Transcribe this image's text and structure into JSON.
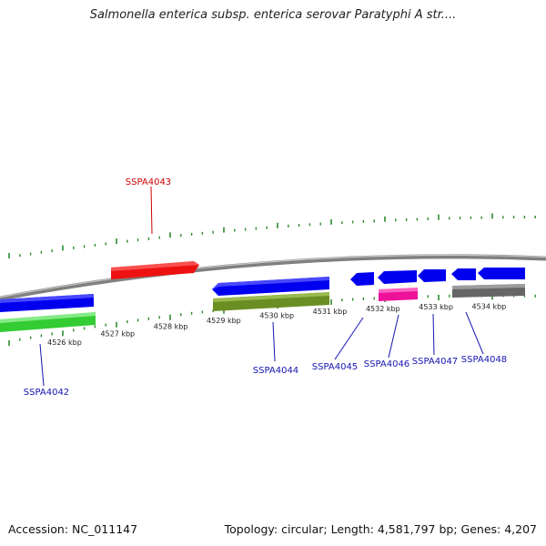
{
  "title": "Salmonella enterica subsp. enterica serovar Paratyphi A str....",
  "footer": {
    "accession": "Accession: NC_011147",
    "summary": "Topology: circular; Length: 4,581,797 bp; Genes: 4,207"
  },
  "colors": {
    "backbone": "#808080",
    "tick": "#2e8b2e",
    "label_blue": "#1515b0",
    "label_red": "#cc0000"
  },
  "position_labels": [
    {
      "text": "4526 kbp",
      "kbp": 4526
    },
    {
      "text": "4527 kbp",
      "kbp": 4527
    },
    {
      "text": "4528 kbp",
      "kbp": 4528
    },
    {
      "text": "4529 kbp",
      "kbp": 4529
    },
    {
      "text": "4530 kbp",
      "kbp": 4530
    },
    {
      "text": "4531 kbp",
      "kbp": 4531
    },
    {
      "text": "4532 kbp",
      "kbp": 4532
    },
    {
      "text": "4533 kbp",
      "kbp": 4533
    },
    {
      "text": "4534 kbp",
      "kbp": 4534
    }
  ],
  "genes": [
    {
      "label": "SSPA4042",
      "color": "#0000ee",
      "labelColor": "#1515b0",
      "strand": "minus",
      "start_kbp": 4525.2,
      "end_kbp": 4526.6
    },
    {
      "label": "SSPA4043",
      "color": "#ee1111",
      "labelColor": "#cc0000",
      "strand": "plus",
      "start_kbp": 4526.9,
      "end_kbp": 4528.6
    },
    {
      "label": "SSPA4044",
      "color": "#0000ee",
      "labelColor": "#1515b0",
      "strand": "minus",
      "start_kbp": 4529.1,
      "end_kbp": 4531.3
    },
    {
      "label": "SSPA4045",
      "color": "#0000ee",
      "labelColor": "#1515b0",
      "strand": "minus",
      "start_kbp": 4531.9,
      "end_kbp": 4532.4
    },
    {
      "label": "SSPA4046",
      "color": "#0000ee",
      "labelColor": "#1515b0",
      "strand": "minus",
      "start_kbp": 4532.5,
      "end_kbp": 4533.3
    },
    {
      "label": "SSPA4047",
      "color": "#0000ee",
      "labelColor": "#1515b0",
      "strand": "minus",
      "start_kbp": 4533.3,
      "end_kbp": 4533.9
    },
    {
      "label": "SSPA4048",
      "color": "#0000ee",
      "labelColor": "#1515b0",
      "strand": "minus",
      "start_kbp": 4534.1,
      "end_kbp": 4535.2
    }
  ],
  "features": [
    {
      "kind": "rRNA-like",
      "color": "#33cc33",
      "start_kbp": 4525.2,
      "end_kbp": 4526.6
    },
    {
      "kind": "misc",
      "color": "#6b8e23",
      "start_kbp": 4529.1,
      "end_kbp": 4531.3
    },
    {
      "kind": "misc",
      "color": "#ee1199",
      "start_kbp": 4532.5,
      "end_kbp": 4533.2
    },
    {
      "kind": "misc",
      "color": "#666666",
      "start_kbp": 4533.9,
      "end_kbp": 4535.2
    }
  ]
}
